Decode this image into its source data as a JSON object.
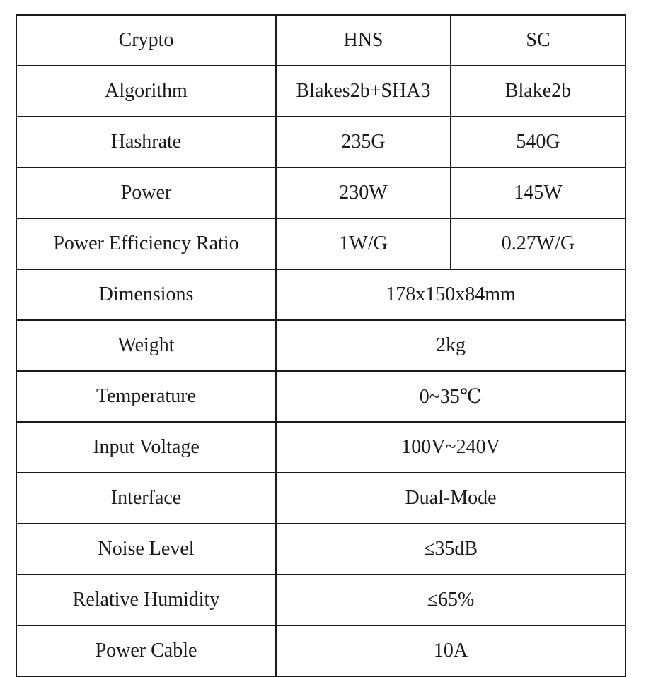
{
  "table": {
    "header": {
      "label": "Crypto",
      "hns": "HNS",
      "sc": "SC"
    },
    "split_rows": [
      {
        "label": "Algorithm",
        "hns": "Blakes2b+SHA3",
        "sc": "Blake2b"
      },
      {
        "label": "Hashrate",
        "hns": "235G",
        "sc": "540G"
      },
      {
        "label": "Power",
        "hns": "230W",
        "sc": "145W"
      },
      {
        "label": "Power Efficiency Ratio",
        "hns": "1W/G",
        "sc": "0.27W/G"
      }
    ],
    "merged_rows": [
      {
        "label": "Dimensions",
        "value": "178x150x84mm"
      },
      {
        "label": "Weight",
        "value": "2kg"
      },
      {
        "label": "Temperature",
        "value": "0~35℃"
      },
      {
        "label": "Input Voltage",
        "value": "100V~240V"
      },
      {
        "label": "Interface",
        "value": "Dual-Mode"
      },
      {
        "label": "Noise Level",
        "value": "≤35dB"
      },
      {
        "label": "Relative Humidity",
        "value": "≤65%"
      },
      {
        "label": "Power Cable",
        "value": "10A"
      }
    ]
  }
}
